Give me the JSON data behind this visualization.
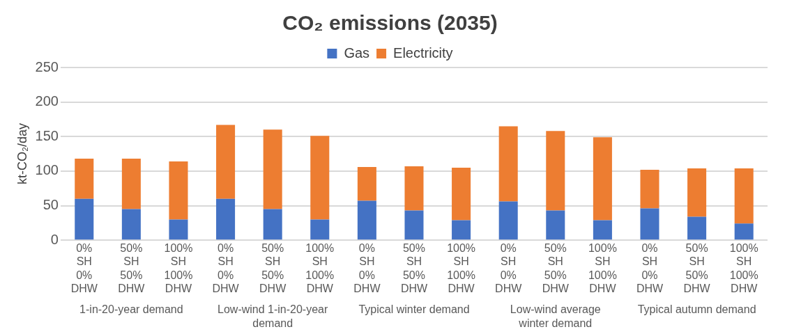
{
  "chart_data": {
    "type": "bar",
    "title": "CO₂ emissions (2035)",
    "ylabel": "kt-CO₂/day",
    "categories": [
      "0% SH 0% DHW",
      "50% SH 50% DHW",
      "100% SH 100% DHW",
      "0% SH 0% DHW",
      "50% SH 50% DHW",
      "100% SH 100% DHW",
      "0% SH 0% DHW",
      "50% SH 50% DHW",
      "100% SH 100% DHW",
      "0% SH 0% DHW",
      "50% SH 50% DHW",
      "100% SH 100% DHW",
      "0% SH 0% DHW",
      "50% SH 50% DHW",
      "100% SH 100% DHW"
    ],
    "series": [
      {
        "name": "Gas",
        "color": "#4472c4",
        "values": [
          60,
          45,
          30,
          60,
          45,
          30,
          57,
          43,
          29,
          56,
          43,
          29,
          46,
          34,
          24
        ]
      },
      {
        "name": "Electricity",
        "color": "#ed7d31",
        "values": [
          58,
          73,
          84,
          107,
          115,
          121,
          49,
          64,
          76,
          109,
          115,
          120,
          56,
          70,
          80
        ]
      }
    ],
    "stacked": true,
    "ylim": [
      0,
      250
    ],
    "yticks": [
      0,
      50,
      100,
      150,
      200,
      250
    ],
    "grid": "y",
    "legend": "top",
    "annotations": [
      "1-in-20-year demand",
      "Low-wind 1-in-20-year demand",
      "Typical winter demand",
      "Low-wind average winter demand",
      "Typical autumn demand"
    ]
  }
}
